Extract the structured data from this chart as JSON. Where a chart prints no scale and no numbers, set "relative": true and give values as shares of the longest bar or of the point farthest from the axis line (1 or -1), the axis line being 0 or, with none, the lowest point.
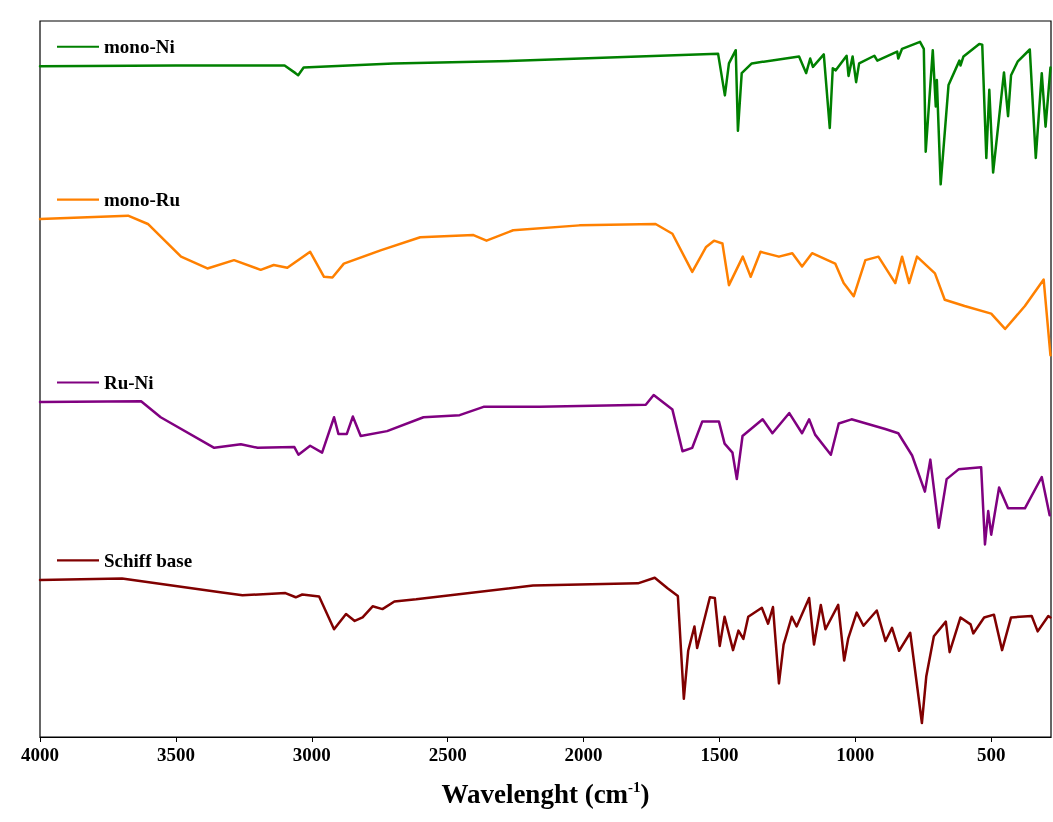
{
  "chart_data": {
    "type": "line",
    "relative": true,
    "xlabel": "Wavelenght (cm$^{-1}$)",
    "xlim": [
      4000,
      280
    ],
    "xticks": [
      4000,
      3500,
      3000,
      2500,
      2000,
      1500,
      1000,
      500
    ],
    "tick_labels": "x",
    "legend": "top left",
    "marker": "none",
    "grid": false,
    "series": [
      {
        "name": "mono-Ni",
        "color": "#008000",
        "x": [
          4000,
          3500,
          3100,
          3060,
          3050,
          3030,
          2700,
          2223,
          1505,
          1480,
          1465,
          1440,
          1432,
          1418,
          1381,
          1207,
          1181,
          1166,
          1156,
          1116,
          1094,
          1083,
          1072,
          1032,
          1025,
          1010,
          997,
          986,
          930,
          919,
          846,
          842,
          828,
          762,
          748,
          741,
          715,
          704,
          700,
          686,
          657,
          617,
          613,
          602,
          544,
          533,
          518,
          507,
          493,
          453,
          438,
          427,
          402,
          358,
          336,
          314,
          300,
          282
        ],
        "values": [
          0.965,
          0.966,
          0.966,
          0.955,
          0.952,
          0.963,
          0.969,
          0.973,
          0.983,
          0.923,
          0.969,
          0.988,
          0.872,
          0.955,
          0.969,
          0.979,
          0.955,
          0.976,
          0.964,
          0.982,
          0.876,
          0.962,
          0.959,
          0.98,
          0.951,
          0.979,
          0.942,
          0.969,
          0.98,
          0.973,
          0.986,
          0.976,
          0.99,
          1.0,
          0.99,
          0.842,
          0.988,
          0.907,
          0.945,
          0.795,
          0.938,
          0.973,
          0.966,
          0.979,
          0.997,
          0.996,
          0.833,
          0.931,
          0.812,
          0.956,
          0.893,
          0.952,
          0.972,
          0.989,
          0.833,
          0.955,
          0.878,
          0.963
        ]
      },
      {
        "name": "mono-Ru",
        "color": "#ff8000",
        "x": [
          4000,
          3676,
          3603,
          3481,
          3384,
          3286,
          3188,
          3140,
          3090,
          3006,
          2955,
          2924,
          2882,
          2747,
          2601,
          2405,
          2357,
          2259,
          2015,
          1735,
          1673,
          1600,
          1549,
          1520,
          1489,
          1465,
          1414,
          1385,
          1349,
          1281,
          1232,
          1196,
          1159,
          1074,
          1043,
          1006,
          963,
          915,
          853,
          828,
          802,
          773,
          707,
          671,
          598,
          500,
          449,
          376,
          307,
          282
        ],
        "values": [
          0.745,
          0.75,
          0.738,
          0.691,
          0.674,
          0.686,
          0.672,
          0.679,
          0.675,
          0.698,
          0.662,
          0.661,
          0.681,
          0.7,
          0.719,
          0.722,
          0.714,
          0.729,
          0.736,
          0.738,
          0.724,
          0.669,
          0.705,
          0.714,
          0.71,
          0.65,
          0.691,
          0.662,
          0.698,
          0.691,
          0.696,
          0.677,
          0.696,
          0.681,
          0.653,
          0.634,
          0.686,
          0.691,
          0.653,
          0.691,
          0.653,
          0.691,
          0.667,
          0.629,
          0.62,
          0.609,
          0.587,
          0.62,
          0.658,
          0.549
        ]
      },
      {
        "name": "Ru-Ni",
        "color": "#800080",
        "x": [
          4000,
          3628,
          3556,
          3359,
          3261,
          3199,
          3064,
          3049,
          3006,
          2962,
          2918,
          2902,
          2871,
          2849,
          2820,
          2723,
          2589,
          2456,
          2368,
          2161,
          1771,
          1742,
          1673,
          1636,
          1600,
          1563,
          1502,
          1481,
          1452,
          1436,
          1415,
          1341,
          1305,
          1243,
          1196,
          1170,
          1148,
          1090,
          1061,
          1014,
          890,
          842,
          791,
          744,
          724,
          693,
          664,
          620,
          537,
          523,
          511,
          500,
          471,
          438,
          376,
          314,
          285
        ],
        "values": [
          0.482,
          0.483,
          0.46,
          0.416,
          0.421,
          0.416,
          0.417,
          0.406,
          0.419,
          0.409,
          0.46,
          0.436,
          0.436,
          0.461,
          0.433,
          0.44,
          0.46,
          0.463,
          0.475,
          0.475,
          0.478,
          0.492,
          0.471,
          0.411,
          0.416,
          0.454,
          0.454,
          0.422,
          0.409,
          0.371,
          0.433,
          0.457,
          0.437,
          0.466,
          0.437,
          0.457,
          0.435,
          0.406,
          0.451,
          0.457,
          0.443,
          0.437,
          0.405,
          0.353,
          0.399,
          0.301,
          0.371,
          0.385,
          0.388,
          0.277,
          0.325,
          0.291,
          0.359,
          0.329,
          0.329,
          0.374,
          0.319
        ]
      },
      {
        "name": "Schiff base",
        "color": "#800000",
        "x": [
          4000,
          3698,
          3330,
          3255,
          3097,
          3059,
          3035,
          2973,
          2918,
          2874,
          2842,
          2813,
          2776,
          2740,
          2696,
          2616,
          2186,
          1800,
          1738,
          1691,
          1653,
          1631,
          1615,
          1592,
          1582,
          1535,
          1517,
          1499,
          1481,
          1450,
          1430,
          1412,
          1394,
          1344,
          1321,
          1303,
          1281,
          1264,
          1234,
          1216,
          1170,
          1152,
          1127,
          1110,
          1063,
          1041,
          1026,
          995,
          970,
          921,
          889,
          865,
          839,
          798,
          755,
          739,
          711,
          667,
          653,
          613,
          576,
          566,
          526,
          490,
          460,
          427,
          351,
          329,
          290,
          282
        ],
        "values": [
          0.226,
          0.228,
          0.208,
          0.204,
          0.207,
          0.201,
          0.205,
          0.202,
          0.155,
          0.177,
          0.167,
          0.172,
          0.188,
          0.184,
          0.195,
          0.198,
          0.218,
          0.221,
          0.229,
          0.214,
          0.203,
          0.055,
          0.124,
          0.159,
          0.128,
          0.201,
          0.2,
          0.131,
          0.173,
          0.125,
          0.153,
          0.141,
          0.173,
          0.186,
          0.163,
          0.187,
          0.077,
          0.133,
          0.173,
          0.159,
          0.2,
          0.133,
          0.19,
          0.155,
          0.19,
          0.11,
          0.142,
          0.179,
          0.16,
          0.182,
          0.138,
          0.157,
          0.124,
          0.15,
          0.02,
          0.087,
          0.145,
          0.166,
          0.122,
          0.172,
          0.162,
          0.149,
          0.172,
          0.176,
          0.125,
          0.172,
          0.174,
          0.152,
          0.174,
          0.172
        ]
      }
    ]
  }
}
